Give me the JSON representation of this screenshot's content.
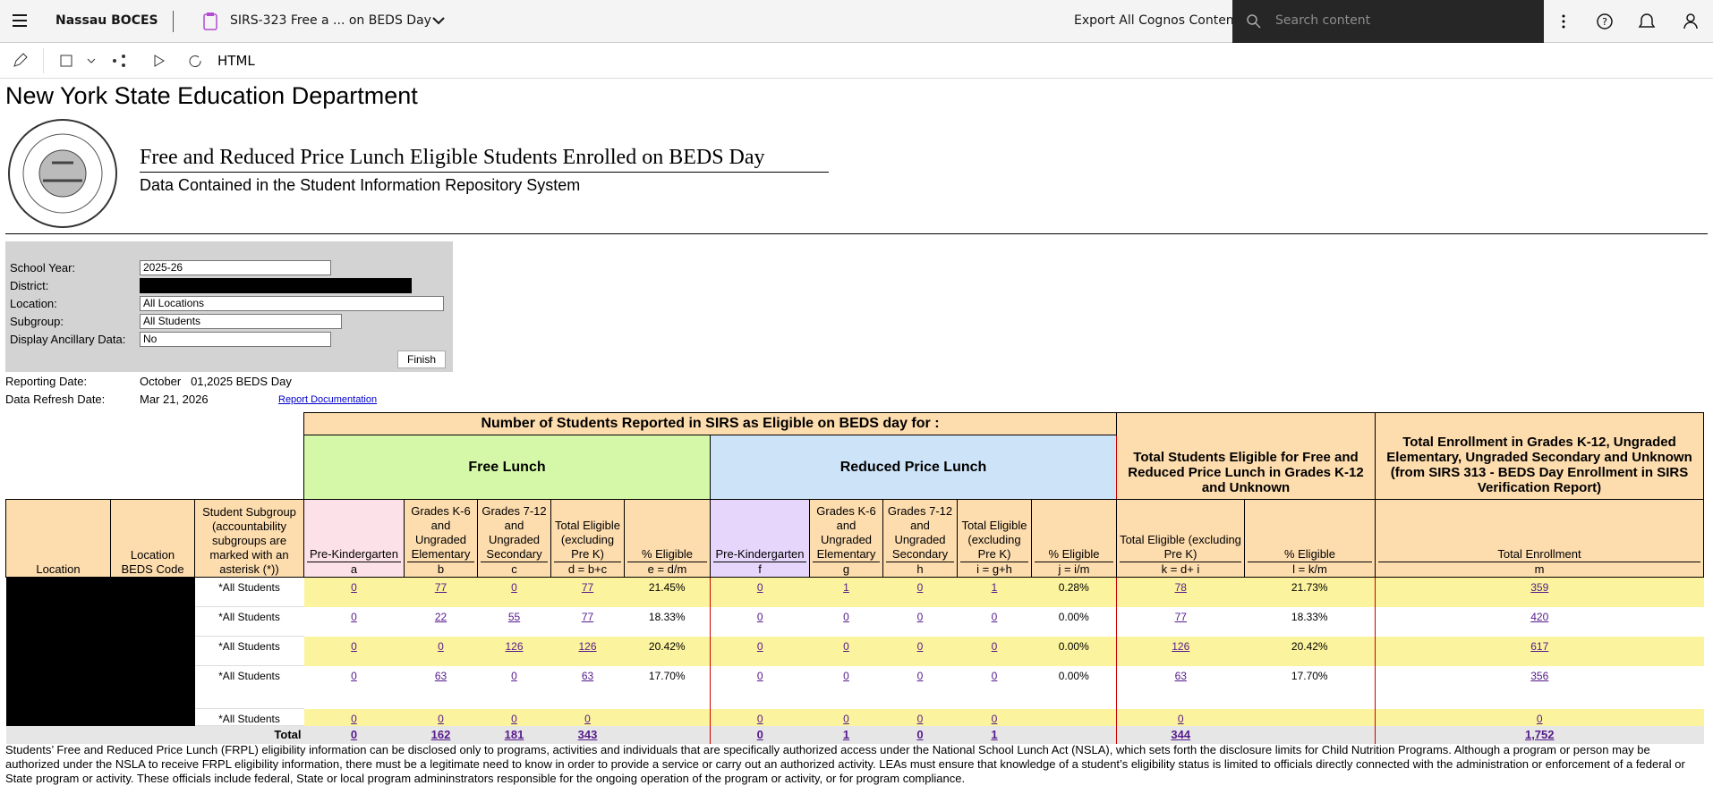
{
  "topbar": {
    "brand": "Nassau BOCES",
    "report_tab": "SIRS-323 Free a ... on BEDS Day",
    "export": "Export All Cognos Contents",
    "search_placeholder": "Search content"
  },
  "toolbar": {
    "format": "HTML"
  },
  "header": {
    "org": "New York State Education Department",
    "title": "Free and Reduced Price Lunch Eligible Students Enrolled on BEDS Day",
    "subtitle": "Data Contained in the Student Information Repository System"
  },
  "prompts": {
    "items": [
      {
        "label": "School Year:",
        "value": "2025-26"
      },
      {
        "label": "District:"
      },
      {
        "label": "Location:",
        "value": "All Locations"
      },
      {
        "label": "Subgroup:",
        "value": "All Students"
      },
      {
        "label": "Display Ancillary Data:",
        "value": "No"
      }
    ],
    "finish": "Finish"
  },
  "reporting": {
    "date_label": "Reporting Date:",
    "date": "October   01,2025 BEDS Day",
    "refresh_label": "Data Refresh Date:",
    "refresh": "Mar 21, 2026",
    "doc_link": "Report Documentation"
  },
  "table": {
    "group_header": "Number of Students Reported in SIRS as Eligible on BEDS day for :",
    "free_header": "Free  Lunch",
    "reduced_header": "Reduced Price Lunch",
    "total_eligible_header": "Total Students Eligible for Free and Reduced Price Lunch in Grades K-12 and Unknown",
    "enrollment_header": "Total Enrollment in Grades K-12, Ungraded Elementary, Ungraded Secondary  and Unknown (from SIRS 313 - BEDS Day Enrollment in SIRS Verification Report)",
    "columns": [
      {
        "label": "Location"
      },
      {
        "label": "Location BEDS Code"
      },
      {
        "label": "Student Subgroup (accountability subgroups are marked with an asterisk (*))"
      },
      {
        "label": "Pre-Kindergarten",
        "code": "a"
      },
      {
        "label": "Grades K-6 and Ungraded Elementary",
        "code": "b"
      },
      {
        "label": "Grades 7-12 and Ungraded Secondary",
        "code": "c"
      },
      {
        "label": "Total Eligible (excluding Pre K)",
        "code": "d = b+c"
      },
      {
        "label": "% Eligible",
        "code": "e = d/m"
      },
      {
        "label": "Pre-Kindergarten",
        "code": "f"
      },
      {
        "label": "Grades K-6 and Ungraded Elementary",
        "code": "g"
      },
      {
        "label": "Grades 7-12 and Ungraded Secondary",
        "code": "h"
      },
      {
        "label": "Total Eligible (excluding Pre K)",
        "code": "i = g+h"
      },
      {
        "label": "% Eligible",
        "code": "j = i/m"
      },
      {
        "label": "Total Eligible (excluding Pre K)",
        "code": "k = d+ i"
      },
      {
        "label": "% Eligible",
        "code": "l = k/m"
      },
      {
        "label": "Total Enrollment",
        "code": "m"
      }
    ],
    "rows": [
      {
        "subgroup": "*All Students",
        "cells": [
          0,
          77,
          0,
          77,
          "21.45%",
          0,
          1,
          0,
          1,
          "0.28%",
          78,
          "21.73%",
          359
        ]
      },
      {
        "subgroup": "*All Students",
        "cells": [
          0,
          22,
          55,
          77,
          "18.33%",
          0,
          0,
          0,
          0,
          "0.00%",
          77,
          "18.33%",
          420
        ]
      },
      {
        "subgroup": "*All Students",
        "cells": [
          0,
          0,
          126,
          126,
          "20.42%",
          0,
          0,
          0,
          0,
          "0.00%",
          126,
          "20.42%",
          617
        ]
      },
      {
        "subgroup": "*All Students",
        "cells": [
          0,
          63,
          0,
          63,
          "17.70%",
          0,
          0,
          0,
          0,
          "0.00%",
          63,
          "17.70%",
          356
        ]
      },
      {
        "subgroup": "*All Students",
        "cells": [
          0,
          0,
          0,
          0,
          null,
          0,
          0,
          0,
          0,
          null,
          0,
          null,
          0
        ]
      }
    ],
    "total": {
      "label": "Total",
      "cells": [
        0,
        162,
        181,
        343,
        null,
        0,
        1,
        0,
        1,
        null,
        344,
        null,
        "1,752"
      ]
    }
  },
  "footer_note": "Students’ Free and Reduced Price Lunch (FRPL) eligibility information can be disclosed only to programs, activities and individuals that are specifically authorized access under the National School Lunch Act (NSLA), which sets forth the disclosure limits for Child Nutrition Programs. Although a program or person may be authorized under the NSLA to receive FRPL eligibility information, there must be a legitimate need to know in order to provide a service or carry out an authorized activity. LEAs must ensure that knowledge of a student’s eligibility status is limited to officials directly connected with the administration or enforcement of a federal or State program or activity. These officials include federal, State or local program admininstrators responsible for the ongoing operation of the program or activity, or for program compliance."
}
